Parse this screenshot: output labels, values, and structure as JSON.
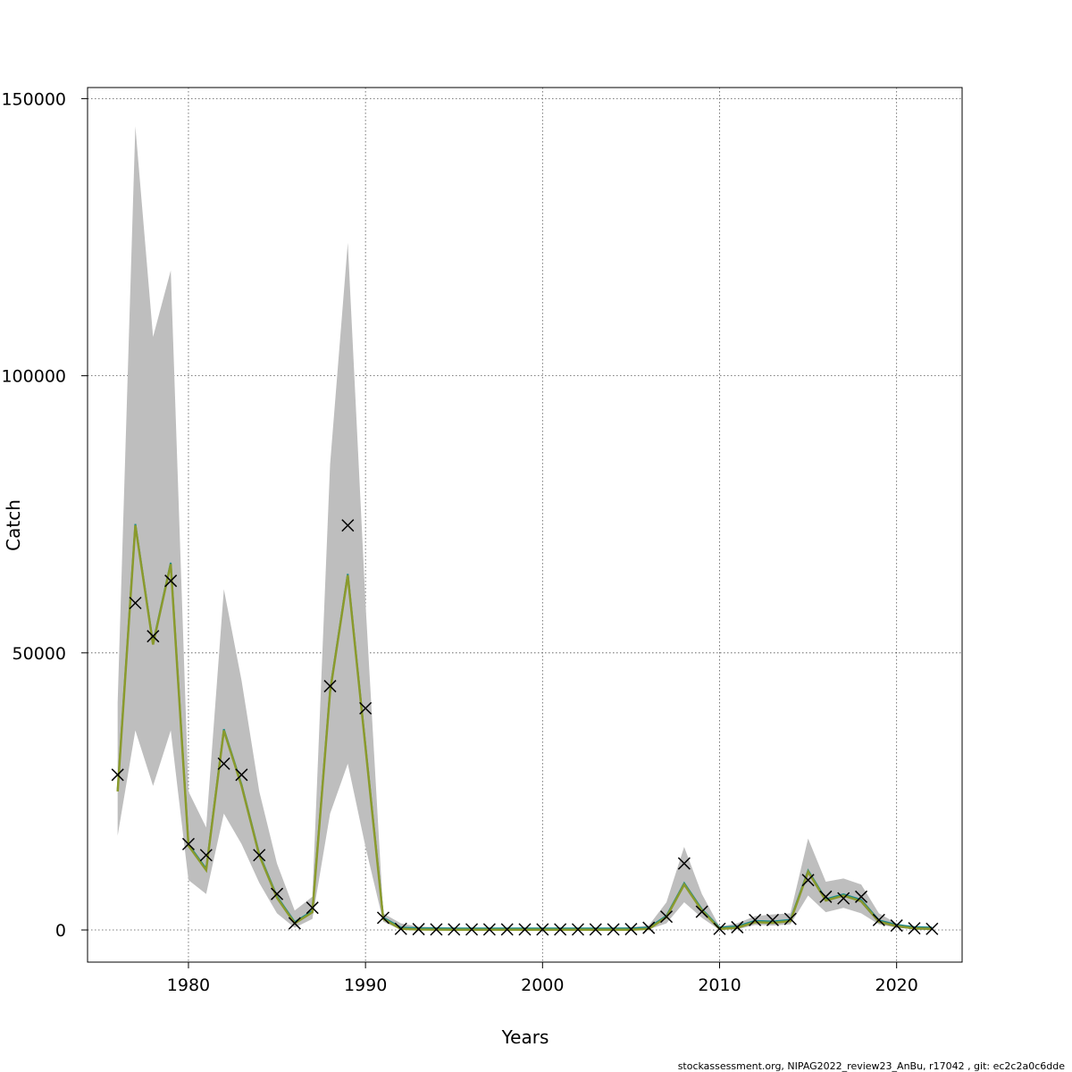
{
  "chart_data": {
    "type": "line",
    "xlabel": "Years",
    "ylabel": "Catch",
    "xlim": [
      1974.3,
      2023.7
    ],
    "ylim": [
      -5800,
      152000
    ],
    "x_ticks": [
      1980,
      1990,
      2000,
      2010,
      2020
    ],
    "y_ticks": [
      0,
      50000,
      100000,
      150000
    ],
    "x_tick_labels": [
      "1980",
      "1990",
      "2000",
      "2010",
      "2020"
    ],
    "y_tick_labels": [
      "0",
      "50000",
      "100000",
      "150000"
    ],
    "grid": true,
    "colors": {
      "band": "#bebebe",
      "fit_main": "#8a9a2c",
      "fit_secondary": "#1a8a8a",
      "fit_tail": "#2b2f7a",
      "observed": "#000000",
      "grid": "#555555"
    },
    "x": [
      1976,
      1977,
      1978,
      1979,
      1980,
      1981,
      1982,
      1983,
      1984,
      1985,
      1986,
      1987,
      1988,
      1989,
      1990,
      1991,
      1992,
      1993,
      1994,
      1995,
      1996,
      1997,
      1998,
      1999,
      2000,
      2001,
      2002,
      2003,
      2004,
      2005,
      2006,
      2007,
      2008,
      2009,
      2010,
      2011,
      2012,
      2013,
      2014,
      2015,
      2016,
      2017,
      2018,
      2019,
      2020,
      2021,
      2022
    ],
    "series": [
      {
        "values": [
          25000,
          73000,
          51500,
          66000,
          15200,
          10800,
          36000,
          26000,
          13500,
          5800,
          1200,
          3200,
          43000,
          64000,
          33000,
          2000,
          200,
          80,
          60,
          50,
          50,
          40,
          40,
          40,
          40,
          40,
          40,
          40,
          40,
          50,
          200,
          2300,
          8200,
          3500,
          200,
          400,
          1400,
          1300,
          1600,
          10500,
          5300,
          6200,
          5200,
          1500,
          700,
          300,
          200
        ]
      },
      {
        "values": [
          28000,
          59000,
          53000,
          63000,
          15500,
          13500,
          30000,
          28000,
          13500,
          6500,
          1200,
          4000,
          44000,
          73000,
          40000,
          2200,
          200,
          150,
          100,
          100,
          100,
          100,
          100,
          100,
          100,
          100,
          100,
          100,
          100,
          150,
          400,
          2400,
          12000,
          3300,
          200,
          500,
          1800,
          1800,
          2000,
          9000,
          6000,
          5700,
          6000,
          1800,
          800,
          300,
          200
        ]
      }
    ],
    "band": {
      "upper": [
        41000,
        145000,
        107000,
        119000,
        25000,
        18500,
        61500,
        45000,
        25000,
        12000,
        3500,
        6000,
        84000,
        124000,
        59000,
        3000,
        1200,
        600,
        500,
        400,
        400,
        400,
        400,
        400,
        400,
        400,
        400,
        400,
        400,
        500,
        800,
        5000,
        15000,
        6500,
        600,
        1200,
        2500,
        2800,
        3000,
        16500,
        8700,
        9300,
        8200,
        3000,
        1200,
        500,
        400
      ],
      "lower": [
        17000,
        36000,
        26000,
        36000,
        9000,
        6500,
        21000,
        15500,
        8500,
        3000,
        400,
        2000,
        21000,
        30000,
        15000,
        1500,
        0,
        0,
        0,
        0,
        0,
        0,
        0,
        0,
        0,
        0,
        0,
        0,
        0,
        0,
        100,
        1200,
        5000,
        2200,
        0,
        100,
        900,
        800,
        1000,
        6200,
        3200,
        4000,
        3000,
        1000,
        400,
        150,
        100
      ]
    },
    "footer": "stockassessment.org, NIPAG2022_review23_AnBu, r17042 , git: ec2c2a0c6dde"
  }
}
